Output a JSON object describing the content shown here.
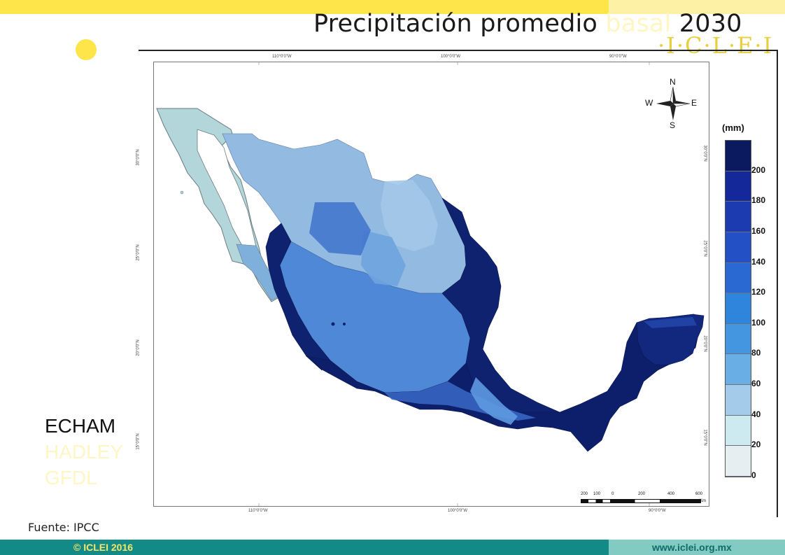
{
  "slide": {
    "title_prefix": "Precipitación promedio",
    "title_faded": "basal",
    "title_suffix": "2030",
    "logo": "·I·C·L·E·I",
    "models": [
      "ECHAM",
      "HADLEY",
      "GFDL"
    ],
    "source": "Fuente: IPCC"
  },
  "footer": {
    "copyright": "© ICLEI 2016",
    "url": "www.iclei.org.mx"
  },
  "map": {
    "lon_labels_top": [
      "110°0'0\"W",
      "100°0'0\"W",
      "90°0'0\"W"
    ],
    "lon_labels_bottom": [
      "110°0'0\"W",
      "100°0'0\"W",
      "90°0'0\"W"
    ],
    "lat_labels": [
      "30°0'0\"N",
      "25°0'0\"N",
      "20°0'0\"N",
      "15°0'0\"N"
    ],
    "compass": {
      "n": "N",
      "s": "S",
      "e": "E",
      "w": "W"
    },
    "scale_labels": [
      "200",
      "100",
      "0",
      "200",
      "400",
      "600"
    ],
    "scale_unit": "Km",
    "legend": {
      "unit": "(mm)",
      "labels": [
        "200",
        "180",
        "160",
        "140",
        "120",
        "100",
        "80",
        "60",
        "40",
        "20",
        "0"
      ],
      "colors": [
        "#0b1a5e",
        "#14289a",
        "#1d3bb0",
        "#2350c4",
        "#2a69d2",
        "#2f84dc",
        "#4596e1",
        "#6aaee6",
        "#a4cbea",
        "#cdeaf0",
        "#e7eef2"
      ]
    },
    "colors": {
      "baja": "#b5d8dc",
      "north": "#9dc2e4",
      "central": "#5b92d8",
      "south": "#0d1f6a",
      "mid": "#2d5cc0"
    }
  }
}
